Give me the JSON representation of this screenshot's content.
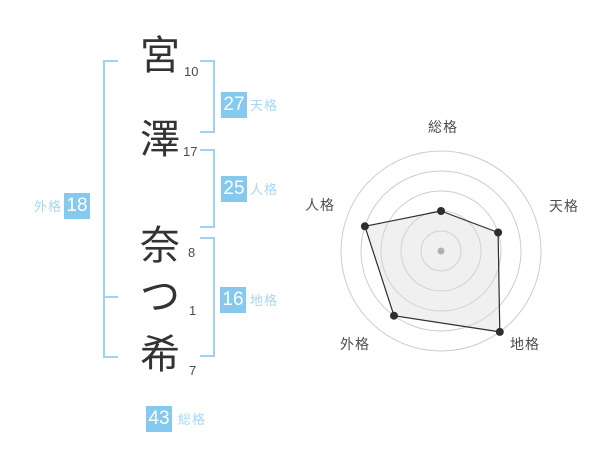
{
  "name_panel": {
    "chars": [
      {
        "char": "宮",
        "strokes": "10"
      },
      {
        "char": "澤",
        "strokes": "17"
      },
      {
        "char": "奈",
        "strokes": "8"
      },
      {
        "char": "つ",
        "strokes": "1"
      },
      {
        "char": "希",
        "strokes": "7"
      }
    ],
    "categories": [
      {
        "id": "tenkaku",
        "label": "天格",
        "value": "27"
      },
      {
        "id": "jinkaku",
        "label": "人格",
        "value": "25"
      },
      {
        "id": "chikaku",
        "label": "地格",
        "value": "16"
      },
      {
        "id": "gaikaku",
        "label": "外格",
        "value": "18"
      },
      {
        "id": "soukaku",
        "label": "総格",
        "value": "43"
      }
    ]
  },
  "colors": {
    "accent_blue": "#85c9ee",
    "bracket_blue": "#9fd3f3",
    "label_blue": "#a6d7f4",
    "ink": "#333333",
    "chart_gray": "#cdcdcd",
    "chart_text": "#4f4f4f"
  },
  "chart_data": {
    "type": "radar",
    "title": "",
    "grid": "circular",
    "legend": "none",
    "rings": [
      1,
      2,
      3,
      4,
      5
    ],
    "max_value": 5,
    "axes": [
      {
        "label": "総格",
        "angle_deg": 90,
        "value": 2
      },
      {
        "label": "天格",
        "angle_deg": 18,
        "value": 3
      },
      {
        "label": "地格",
        "angle_deg": -54,
        "value": 5
      },
      {
        "label": "外格",
        "angle_deg": 234,
        "value": 4
      },
      {
        "label": "人格",
        "angle_deg": 162,
        "value": 4
      }
    ]
  }
}
